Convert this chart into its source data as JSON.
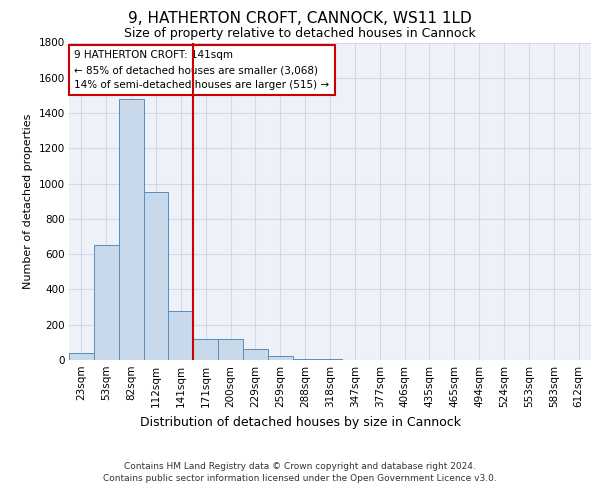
{
  "title_line1": "9, HATHERTON CROFT, CANNOCK, WS11 1LD",
  "title_line2": "Size of property relative to detached houses in Cannock",
  "xlabel": "Distribution of detached houses by size in Cannock",
  "ylabel": "Number of detached properties",
  "footnote": "Contains HM Land Registry data © Crown copyright and database right 2024.\nContains public sector information licensed under the Open Government Licence v3.0.",
  "categories": [
    "23sqm",
    "53sqm",
    "82sqm",
    "112sqm",
    "141sqm",
    "171sqm",
    "200sqm",
    "229sqm",
    "259sqm",
    "288sqm",
    "318sqm",
    "347sqm",
    "377sqm",
    "406sqm",
    "435sqm",
    "465sqm",
    "494sqm",
    "524sqm",
    "553sqm",
    "583sqm",
    "612sqm"
  ],
  "values": [
    40,
    650,
    1480,
    950,
    280,
    120,
    120,
    65,
    20,
    5,
    5,
    0,
    0,
    0,
    0,
    0,
    0,
    0,
    0,
    0,
    0
  ],
  "bar_color": "#c9d9ec",
  "bar_edge_color": "#5b8db8",
  "highlight_index": 4,
  "highlight_color": "#cc0000",
  "ylim": [
    0,
    1800
  ],
  "yticks": [
    0,
    200,
    400,
    600,
    800,
    1000,
    1200,
    1400,
    1600,
    1800
  ],
  "annotation_box_text": "9 HATHERTON CROFT: 141sqm\n← 85% of detached houses are smaller (3,068)\n14% of semi-detached houses are larger (515) →",
  "annotation_box_color": "#cc0000",
  "grid_color": "#d0d8e8",
  "bg_color": "#eef2f8",
  "title_fontsize": 11,
  "subtitle_fontsize": 9,
  "ylabel_fontsize": 8,
  "xlabel_fontsize": 9,
  "footnote_fontsize": 6.5,
  "tick_fontsize": 7.5,
  "annot_fontsize": 7.5
}
